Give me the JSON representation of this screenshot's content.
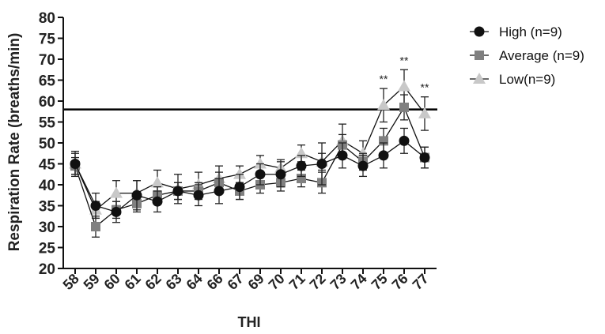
{
  "chart_data": {
    "type": "line",
    "xlabel": "THI",
    "ylabel": "Respiration Rate (breaths/min)",
    "ylim": [
      20,
      80
    ],
    "yticks": [
      20,
      25,
      30,
      35,
      40,
      45,
      50,
      55,
      60,
      65,
      70,
      75,
      80
    ],
    "categories": [
      "58",
      "59",
      "60",
      "61",
      "62",
      "63",
      "64",
      "66",
      "67",
      "69",
      "70",
      "71",
      "72",
      "73",
      "74",
      "75",
      "76",
      "77"
    ],
    "reference_line": 58,
    "legend_position": "top-right",
    "grid": false,
    "series": [
      {
        "name": "High (n=9)",
        "marker": "circle",
        "color": "#111111",
        "values": [
          45,
          35,
          33.5,
          37.5,
          36,
          38.5,
          37.5,
          38.5,
          39.5,
          42.5,
          42.5,
          44.5,
          45,
          47,
          44.5,
          47,
          50.5,
          46.5
        ],
        "errors": [
          3,
          3,
          2.5,
          3.5,
          2.5,
          2,
          2.5,
          3,
          3,
          2.5,
          3,
          2.5,
          5,
          3,
          2.5,
          3,
          3,
          2.5
        ]
      },
      {
        "name": "Average (n=9)",
        "marker": "square",
        "color": "#808080",
        "values": [
          44.5,
          30,
          34,
          35.5,
          37.5,
          38.5,
          38.5,
          40.5,
          38.5,
          40,
          40.5,
          41.5,
          40.5,
          49.5,
          45.5,
          50.5,
          58.5,
          46.5
        ],
        "errors": [
          2,
          2.5,
          2,
          2,
          2,
          2,
          2,
          2.5,
          2,
          2,
          2,
          2,
          2.5,
          2.5,
          2,
          3,
          3,
          2.5
        ]
      },
      {
        "name": "Low(n=9)",
        "marker": "triangle",
        "color": "#c8c8c8",
        "values": [
          45,
          34,
          38,
          38,
          40.5,
          39,
          40,
          41.5,
          42.5,
          45,
          44,
          47.5,
          45.5,
          50.5,
          47.5,
          59,
          63.5,
          57
        ],
        "errors": [
          2.5,
          2,
          3,
          3,
          3,
          3.5,
          3,
          3,
          2,
          2,
          2,
          2,
          2,
          4,
          3,
          4,
          4,
          4
        ]
      }
    ],
    "annotations": [
      {
        "category": "75",
        "text": "**"
      },
      {
        "category": "76",
        "text": "**"
      },
      {
        "category": "77",
        "text": "**"
      }
    ]
  }
}
